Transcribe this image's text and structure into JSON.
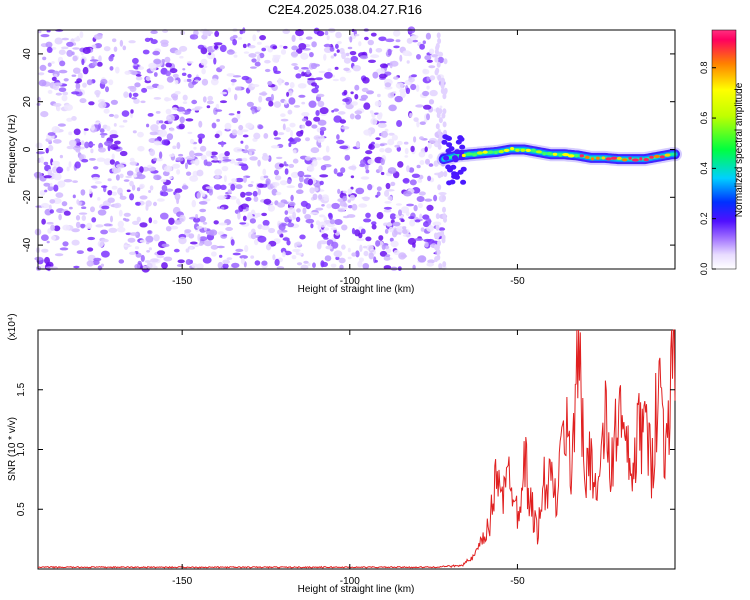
{
  "title": "C2E4.2025.038.04.27.R16",
  "chart_data": [
    {
      "type": "heatmap",
      "name": "spectrogram",
      "xlabel": "Height of straight line (km)",
      "ylabel": "Frequency (Hz)",
      "xlim": [
        -193,
        -3
      ],
      "ylim": [
        -50,
        50
      ],
      "xticks": [
        -150,
        -100,
        -50
      ],
      "yticks": [
        -40,
        -20,
        0,
        20,
        40
      ],
      "noise_region_x": [
        -193,
        -72
      ],
      "signal_region_x": [
        -72,
        -3
      ],
      "signal_track": {
        "x": [
          -72,
          -68,
          -64,
          -60,
          -56,
          -52,
          -48,
          -44,
          -40,
          -36,
          -32,
          -28,
          -24,
          -20,
          -16,
          -12,
          -8,
          -4
        ],
        "freq_hz": [
          -4,
          -2.5,
          -2,
          -1.5,
          -1,
          0,
          0,
          -1,
          -2,
          -2,
          -2.5,
          -3.5,
          -3.5,
          -4,
          -4,
          -4,
          -3,
          -2
        ]
      },
      "colorbar": {
        "label": "Normalized spectral amplitude",
        "ticks": [
          0.0,
          0.2,
          0.4,
          0.6,
          0.8
        ],
        "range": [
          0,
          0.95
        ]
      }
    },
    {
      "type": "line",
      "name": "snr",
      "xlabel": "Height of straight line (km)",
      "ylabel": "SNR (10 * v/v)",
      "multiplier_label": "(x10⁴)",
      "xlim": [
        -193,
        -3
      ],
      "ylim": [
        0,
        2.0
      ],
      "xticks": [
        -150,
        -100,
        -50
      ],
      "yticks": [
        0.5,
        1.0,
        1.5
      ],
      "color": "#e02020",
      "series": {
        "x": [
          -193,
          -150,
          -100,
          -75,
          -70,
          -66,
          -63,
          -60,
          -58,
          -56,
          -54,
          -52,
          -50,
          -48,
          -46,
          -44,
          -42,
          -40,
          -38,
          -36,
          -34,
          -32,
          -30,
          -28,
          -26,
          -24,
          -22,
          -20,
          -18,
          -16,
          -14,
          -12,
          -10,
          -8,
          -6,
          -4
        ],
        "values": [
          0.01,
          0.01,
          0.01,
          0.01,
          0.02,
          0.04,
          0.1,
          0.25,
          0.4,
          0.9,
          0.6,
          0.85,
          0.45,
          0.95,
          0.55,
          0.3,
          0.7,
          0.75,
          0.55,
          1.3,
          0.8,
          2.0,
          0.75,
          1.0,
          0.6,
          1.25,
          0.8,
          1.35,
          1.05,
          0.75,
          1.1,
          1.25,
          0.8,
          1.7,
          0.95,
          1.75
        ]
      }
    }
  ]
}
